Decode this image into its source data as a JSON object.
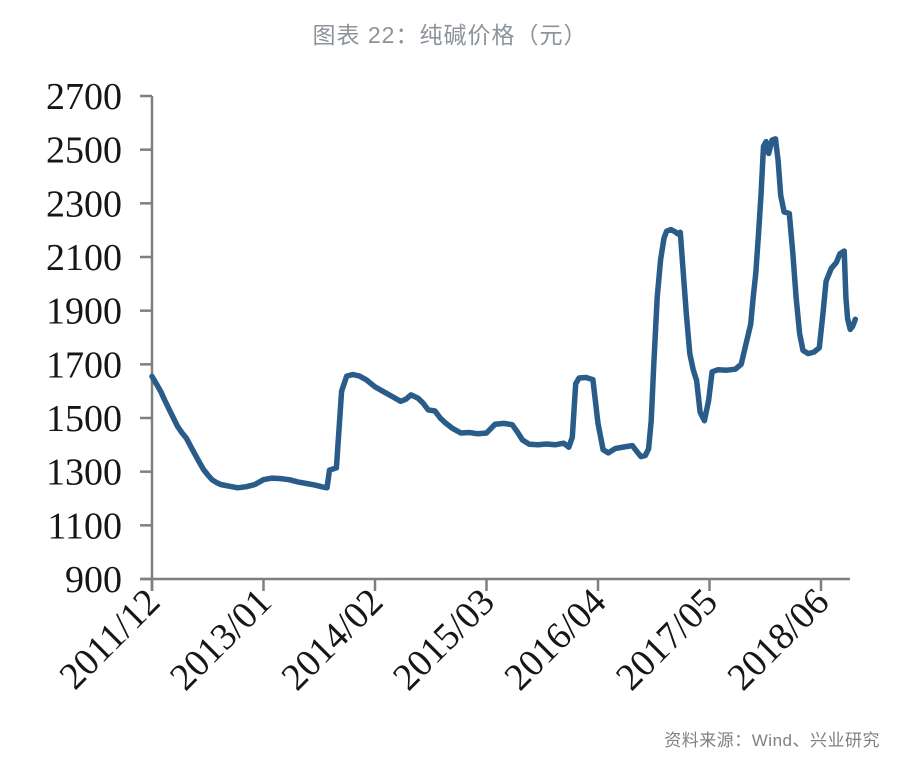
{
  "chart_data": {
    "type": "line",
    "title": "图表 22：纯碱价格（元）",
    "source": "资料来源：Wind、兴业研究",
    "ylabel": "",
    "xlabel": "",
    "ylim": [
      900,
      2700
    ],
    "y_ticks": [
      900,
      1100,
      1300,
      1500,
      1700,
      1900,
      2100,
      2300,
      2500,
      2700
    ],
    "x_tick_labels": [
      "2011/12",
      "2013/01",
      "2014/02",
      "2015/03",
      "2016/04",
      "2017/05",
      "2018/06"
    ],
    "x_tick_months": [
      0,
      13,
      26,
      39,
      52,
      65,
      78
    ],
    "grid": false,
    "legend": "none",
    "line_color": "#2A5C8A",
    "series": [
      {
        "name": "纯碱价格",
        "points": [
          [
            0,
            1655
          ],
          [
            0.5,
            1628
          ],
          [
            1,
            1600
          ],
          [
            1.5,
            1565
          ],
          [
            2,
            1532
          ],
          [
            2.5,
            1500
          ],
          [
            3,
            1468
          ],
          [
            3.5,
            1445
          ],
          [
            4,
            1425
          ],
          [
            4.5,
            1395
          ],
          [
            5,
            1365
          ],
          [
            5.5,
            1336
          ],
          [
            6,
            1308
          ],
          [
            6.5,
            1288
          ],
          [
            7,
            1270
          ],
          [
            7.5,
            1260
          ],
          [
            8,
            1252
          ],
          [
            9,
            1246
          ],
          [
            10,
            1240
          ],
          [
            11,
            1244
          ],
          [
            12,
            1252
          ],
          [
            13,
            1270
          ],
          [
            14,
            1276
          ],
          [
            15,
            1274
          ],
          [
            16,
            1270
          ],
          [
            17,
            1262
          ],
          [
            18,
            1256
          ],
          [
            19,
            1250
          ],
          [
            20,
            1242
          ],
          [
            20.4,
            1240
          ],
          [
            20.7,
            1306
          ],
          [
            21.5,
            1314
          ],
          [
            22.1,
            1600
          ],
          [
            22.7,
            1656
          ],
          [
            23.4,
            1662
          ],
          [
            24.2,
            1656
          ],
          [
            25,
            1642
          ],
          [
            26,
            1616
          ],
          [
            27,
            1598
          ],
          [
            28,
            1580
          ],
          [
            29,
            1562
          ],
          [
            29.6,
            1570
          ],
          [
            30.2,
            1586
          ],
          [
            31,
            1574
          ],
          [
            31.6,
            1556
          ],
          [
            32.2,
            1530
          ],
          [
            33,
            1526
          ],
          [
            33.6,
            1500
          ],
          [
            34.2,
            1482
          ],
          [
            35,
            1462
          ],
          [
            36,
            1444
          ],
          [
            37,
            1446
          ],
          [
            38,
            1441
          ],
          [
            39,
            1444
          ],
          [
            40,
            1477
          ],
          [
            41,
            1480
          ],
          [
            42,
            1475
          ],
          [
            42.6,
            1448
          ],
          [
            43.2,
            1418
          ],
          [
            44,
            1402
          ],
          [
            45,
            1400
          ],
          [
            46,
            1403
          ],
          [
            47,
            1400
          ],
          [
            48,
            1406
          ],
          [
            48.6,
            1391
          ],
          [
            49,
            1428
          ],
          [
            49.4,
            1628
          ],
          [
            49.8,
            1649
          ],
          [
            50.6,
            1651
          ],
          [
            51.4,
            1643
          ],
          [
            52,
            1480
          ],
          [
            52.6,
            1382
          ],
          [
            53.2,
            1370
          ],
          [
            54,
            1386
          ],
          [
            55,
            1392
          ],
          [
            56,
            1397
          ],
          [
            56.6,
            1372
          ],
          [
            57,
            1356
          ],
          [
            57.5,
            1360
          ],
          [
            57.9,
            1385
          ],
          [
            58.2,
            1490
          ],
          [
            58.5,
            1700
          ],
          [
            58.9,
            1950
          ],
          [
            59.3,
            2090
          ],
          [
            59.7,
            2170
          ],
          [
            60,
            2196
          ],
          [
            60.5,
            2202
          ],
          [
            61,
            2194
          ],
          [
            61.3,
            2186
          ],
          [
            61.6,
            2192
          ],
          [
            61.9,
            2060
          ],
          [
            62.3,
            1890
          ],
          [
            62.7,
            1740
          ],
          [
            63.1,
            1680
          ],
          [
            63.5,
            1640
          ],
          [
            63.9,
            1522
          ],
          [
            64.4,
            1490
          ],
          [
            64.9,
            1565
          ],
          [
            65.3,
            1672
          ],
          [
            66,
            1680
          ],
          [
            67,
            1678
          ],
          [
            68,
            1682
          ],
          [
            68.7,
            1700
          ],
          [
            69.3,
            1782
          ],
          [
            69.8,
            1850
          ],
          [
            70.1,
            1950
          ],
          [
            70.4,
            2040
          ],
          [
            70.7,
            2180
          ],
          [
            71,
            2330
          ],
          [
            71.3,
            2512
          ],
          [
            71.6,
            2530
          ],
          [
            71.9,
            2486
          ],
          [
            72.3,
            2536
          ],
          [
            72.7,
            2540
          ],
          [
            73,
            2460
          ],
          [
            73.3,
            2330
          ],
          [
            73.7,
            2268
          ],
          [
            74.3,
            2262
          ],
          [
            74.7,
            2120
          ],
          [
            75.1,
            1950
          ],
          [
            75.5,
            1815
          ],
          [
            75.9,
            1752
          ],
          [
            76.5,
            1740
          ],
          [
            77.2,
            1746
          ],
          [
            77.8,
            1762
          ],
          [
            78.2,
            1880
          ],
          [
            78.6,
            2010
          ],
          [
            79.2,
            2058
          ],
          [
            79.8,
            2080
          ],
          [
            80.2,
            2112
          ],
          [
            80.7,
            2122
          ],
          [
            80.9,
            1950
          ],
          [
            81.1,
            1870
          ],
          [
            81.4,
            1830
          ],
          [
            81.7,
            1842
          ],
          [
            82,
            1868
          ]
        ]
      }
    ]
  }
}
